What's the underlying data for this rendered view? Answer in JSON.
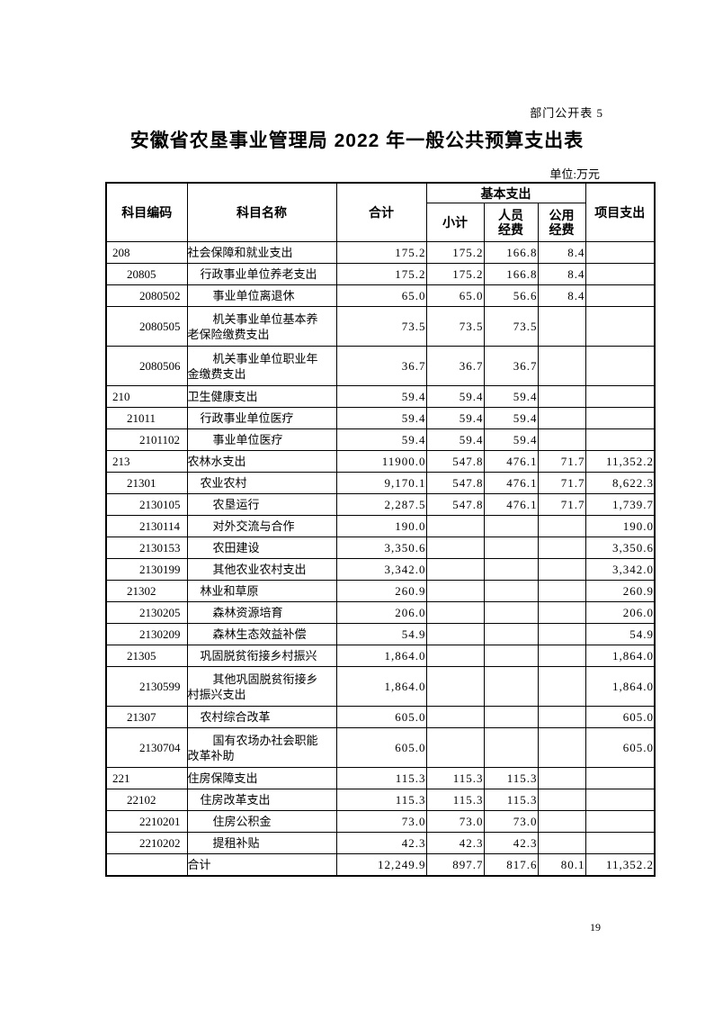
{
  "page": {
    "doc_label": "部门公开表 5",
    "title": "安徽省农垦事业管理局 2022 年一般公共预算支出表",
    "unit_label": "单位:万元",
    "page_number": "19"
  },
  "table": {
    "headers": {
      "code": "科目编码",
      "name": "科目名称",
      "total": "合计",
      "basic_group": "基本支出",
      "subtotal": "小计",
      "personnel": "人员\n经费",
      "public": "公用\n经费",
      "project": "项目支出"
    },
    "rows": [
      {
        "code": "208",
        "name": "社会保障和就业支出",
        "level": 1,
        "tall": false,
        "values": [
          "175.2",
          "175.2",
          "166.8",
          "8.4",
          ""
        ]
      },
      {
        "code": "20805",
        "name": "行政事业单位养老支出",
        "level": 2,
        "tall": false,
        "values": [
          "175.2",
          "175.2",
          "166.8",
          "8.4",
          ""
        ]
      },
      {
        "code": "2080502",
        "name": "事业单位离退休",
        "level": 3,
        "tall": false,
        "values": [
          "65.0",
          "65.0",
          "56.6",
          "8.4",
          ""
        ]
      },
      {
        "code": "2080505",
        "name": "机关事业单位基本养\n老保险缴费支出",
        "level": 3,
        "tall": true,
        "values": [
          "73.5",
          "73.5",
          "73.5",
          "",
          ""
        ]
      },
      {
        "code": "2080506",
        "name": "机关事业单位职业年\n金缴费支出",
        "level": 3,
        "tall": true,
        "values": [
          "36.7",
          "36.7",
          "36.7",
          "",
          ""
        ]
      },
      {
        "code": "210",
        "name": "卫生健康支出",
        "level": 1,
        "tall": false,
        "values": [
          "59.4",
          "59.4",
          "59.4",
          "",
          ""
        ]
      },
      {
        "code": "21011",
        "name": "行政事业单位医疗",
        "level": 2,
        "tall": false,
        "values": [
          "59.4",
          "59.4",
          "59.4",
          "",
          ""
        ]
      },
      {
        "code": "2101102",
        "name": "事业单位医疗",
        "level": 3,
        "tall": false,
        "values": [
          "59.4",
          "59.4",
          "59.4",
          "",
          ""
        ]
      },
      {
        "code": "213",
        "name": "农林水支出",
        "level": 1,
        "tall": false,
        "values": [
          "11900.0",
          "547.8",
          "476.1",
          "71.7",
          "11,352.2"
        ]
      },
      {
        "code": "21301",
        "name": "农业农村",
        "level": 2,
        "tall": false,
        "values": [
          "9,170.1",
          "547.8",
          "476.1",
          "71.7",
          "8,622.3"
        ]
      },
      {
        "code": "2130105",
        "name": "农垦运行",
        "level": 3,
        "tall": false,
        "values": [
          "2,287.5",
          "547.8",
          "476.1",
          "71.7",
          "1,739.7"
        ]
      },
      {
        "code": "2130114",
        "name": "对外交流与合作",
        "level": 3,
        "tall": false,
        "values": [
          "190.0",
          "",
          "",
          "",
          "190.0"
        ]
      },
      {
        "code": "2130153",
        "name": "农田建设",
        "level": 3,
        "tall": false,
        "values": [
          "3,350.6",
          "",
          "",
          "",
          "3,350.6"
        ]
      },
      {
        "code": "2130199",
        "name": "其他农业农村支出",
        "level": 3,
        "tall": false,
        "values": [
          "3,342.0",
          "",
          "",
          "",
          "3,342.0"
        ]
      },
      {
        "code": "21302",
        "name": "林业和草原",
        "level": 2,
        "tall": false,
        "values": [
          "260.9",
          "",
          "",
          "",
          "260.9"
        ]
      },
      {
        "code": "2130205",
        "name": "森林资源培育",
        "level": 3,
        "tall": false,
        "values": [
          "206.0",
          "",
          "",
          "",
          "206.0"
        ]
      },
      {
        "code": "2130209",
        "name": "森林生态效益补偿",
        "level": 3,
        "tall": false,
        "values": [
          "54.9",
          "",
          "",
          "",
          "54.9"
        ]
      },
      {
        "code": "21305",
        "name": "巩固脱贫衔接乡村振兴",
        "level": 2,
        "tall": false,
        "values": [
          "1,864.0",
          "",
          "",
          "",
          "1,864.0"
        ]
      },
      {
        "code": "2130599",
        "name": "其他巩固脱贫衔接乡\n村振兴支出",
        "level": 3,
        "tall": true,
        "values": [
          "1,864.0",
          "",
          "",
          "",
          "1,864.0"
        ]
      },
      {
        "code": "21307",
        "name": "农村综合改革",
        "level": 2,
        "tall": false,
        "values": [
          "605.0",
          "",
          "",
          "",
          "605.0"
        ]
      },
      {
        "code": "2130704",
        "name": "国有农场办社会职能\n改革补助",
        "level": 3,
        "tall": true,
        "values": [
          "605.0",
          "",
          "",
          "",
          "605.0"
        ]
      },
      {
        "code": "221",
        "name": "住房保障支出",
        "level": 1,
        "tall": false,
        "values": [
          "115.3",
          "115.3",
          "115.3",
          "",
          ""
        ]
      },
      {
        "code": "22102",
        "name": "住房改革支出",
        "level": 2,
        "tall": false,
        "values": [
          "115.3",
          "115.3",
          "115.3",
          "",
          ""
        ]
      },
      {
        "code": "2210201",
        "name": "住房公积金",
        "level": 3,
        "tall": false,
        "values": [
          "73.0",
          "73.0",
          "73.0",
          "",
          ""
        ]
      },
      {
        "code": "2210202",
        "name": "提租补贴",
        "level": 3,
        "tall": false,
        "values": [
          "42.3",
          "42.3",
          "42.3",
          "",
          ""
        ]
      },
      {
        "code": "",
        "name": "合计",
        "level": 1,
        "tall": false,
        "values": [
          "12,249.9",
          "897.7",
          "817.6",
          "80.1",
          "11,352.2"
        ]
      }
    ]
  }
}
